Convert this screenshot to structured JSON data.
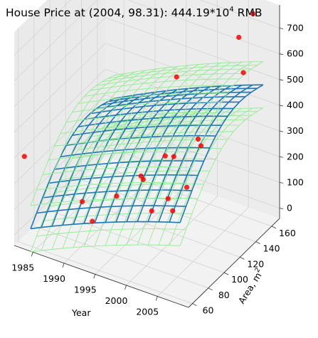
{
  "chart_data": {
    "type": "surface3d",
    "title_main": "House Price at (2004, 98.31): 444.19*10",
    "title_exp": "4",
    "title_unit": " RMB",
    "xlabel": "Year",
    "ylabel_main": "Area, m",
    "ylabel_exp": "2",
    "x_ticks": [
      "1985",
      "1990",
      "1995",
      "2000",
      "2005"
    ],
    "y_ticks": [
      "60",
      "80",
      "100",
      "120",
      "140",
      "160"
    ],
    "z_ticks": [
      "0",
      "100",
      "200",
      "300",
      "400",
      "500",
      "600",
      "700"
    ],
    "xlim": [
      1982,
      2010
    ],
    "ylim": [
      55,
      170
    ],
    "zlim": [
      -40,
      790
    ],
    "highlight": {
      "year": 2004,
      "area": 98.31,
      "price": 444.19
    },
    "colors": {
      "mean_surface": "#1f77b4",
      "bound_surfaces": "#90ee90",
      "points": "#ff0000"
    },
    "points": [
      {
        "year": 1983,
        "area": 60,
        "price": 300
      },
      {
        "year": 1990,
        "area": 78,
        "price": 130
      },
      {
        "year": 1992,
        "area": 75,
        "price": 80
      },
      {
        "year": 1994,
        "area": 90,
        "price": 150
      },
      {
        "year": 1996,
        "area": 105,
        "price": 200
      },
      {
        "year": 1997,
        "area": 100,
        "price": 210
      },
      {
        "year": 1998,
        "area": 120,
        "price": 250
      },
      {
        "year": 1999,
        "area": 95,
        "price": 120
      },
      {
        "year": 2000,
        "area": 115,
        "price": 280
      },
      {
        "year": 2001,
        "area": 100,
        "price": 170
      },
      {
        "year": 2002,
        "area": 130,
        "price": 320
      },
      {
        "year": 2003,
        "area": 90,
        "price": 170
      },
      {
        "year": 2004,
        "area": 100,
        "price": 240
      },
      {
        "year": 1996,
        "area": 150,
        "price": 450
      },
      {
        "year": 2006,
        "area": 150,
        "price": 690
      },
      {
        "year": 2007,
        "area": 160,
        "price": 760
      },
      {
        "year": 2008,
        "area": 140,
        "price": 600
      },
      {
        "year": 2005,
        "area": 110,
        "price": 380
      }
    ]
  }
}
